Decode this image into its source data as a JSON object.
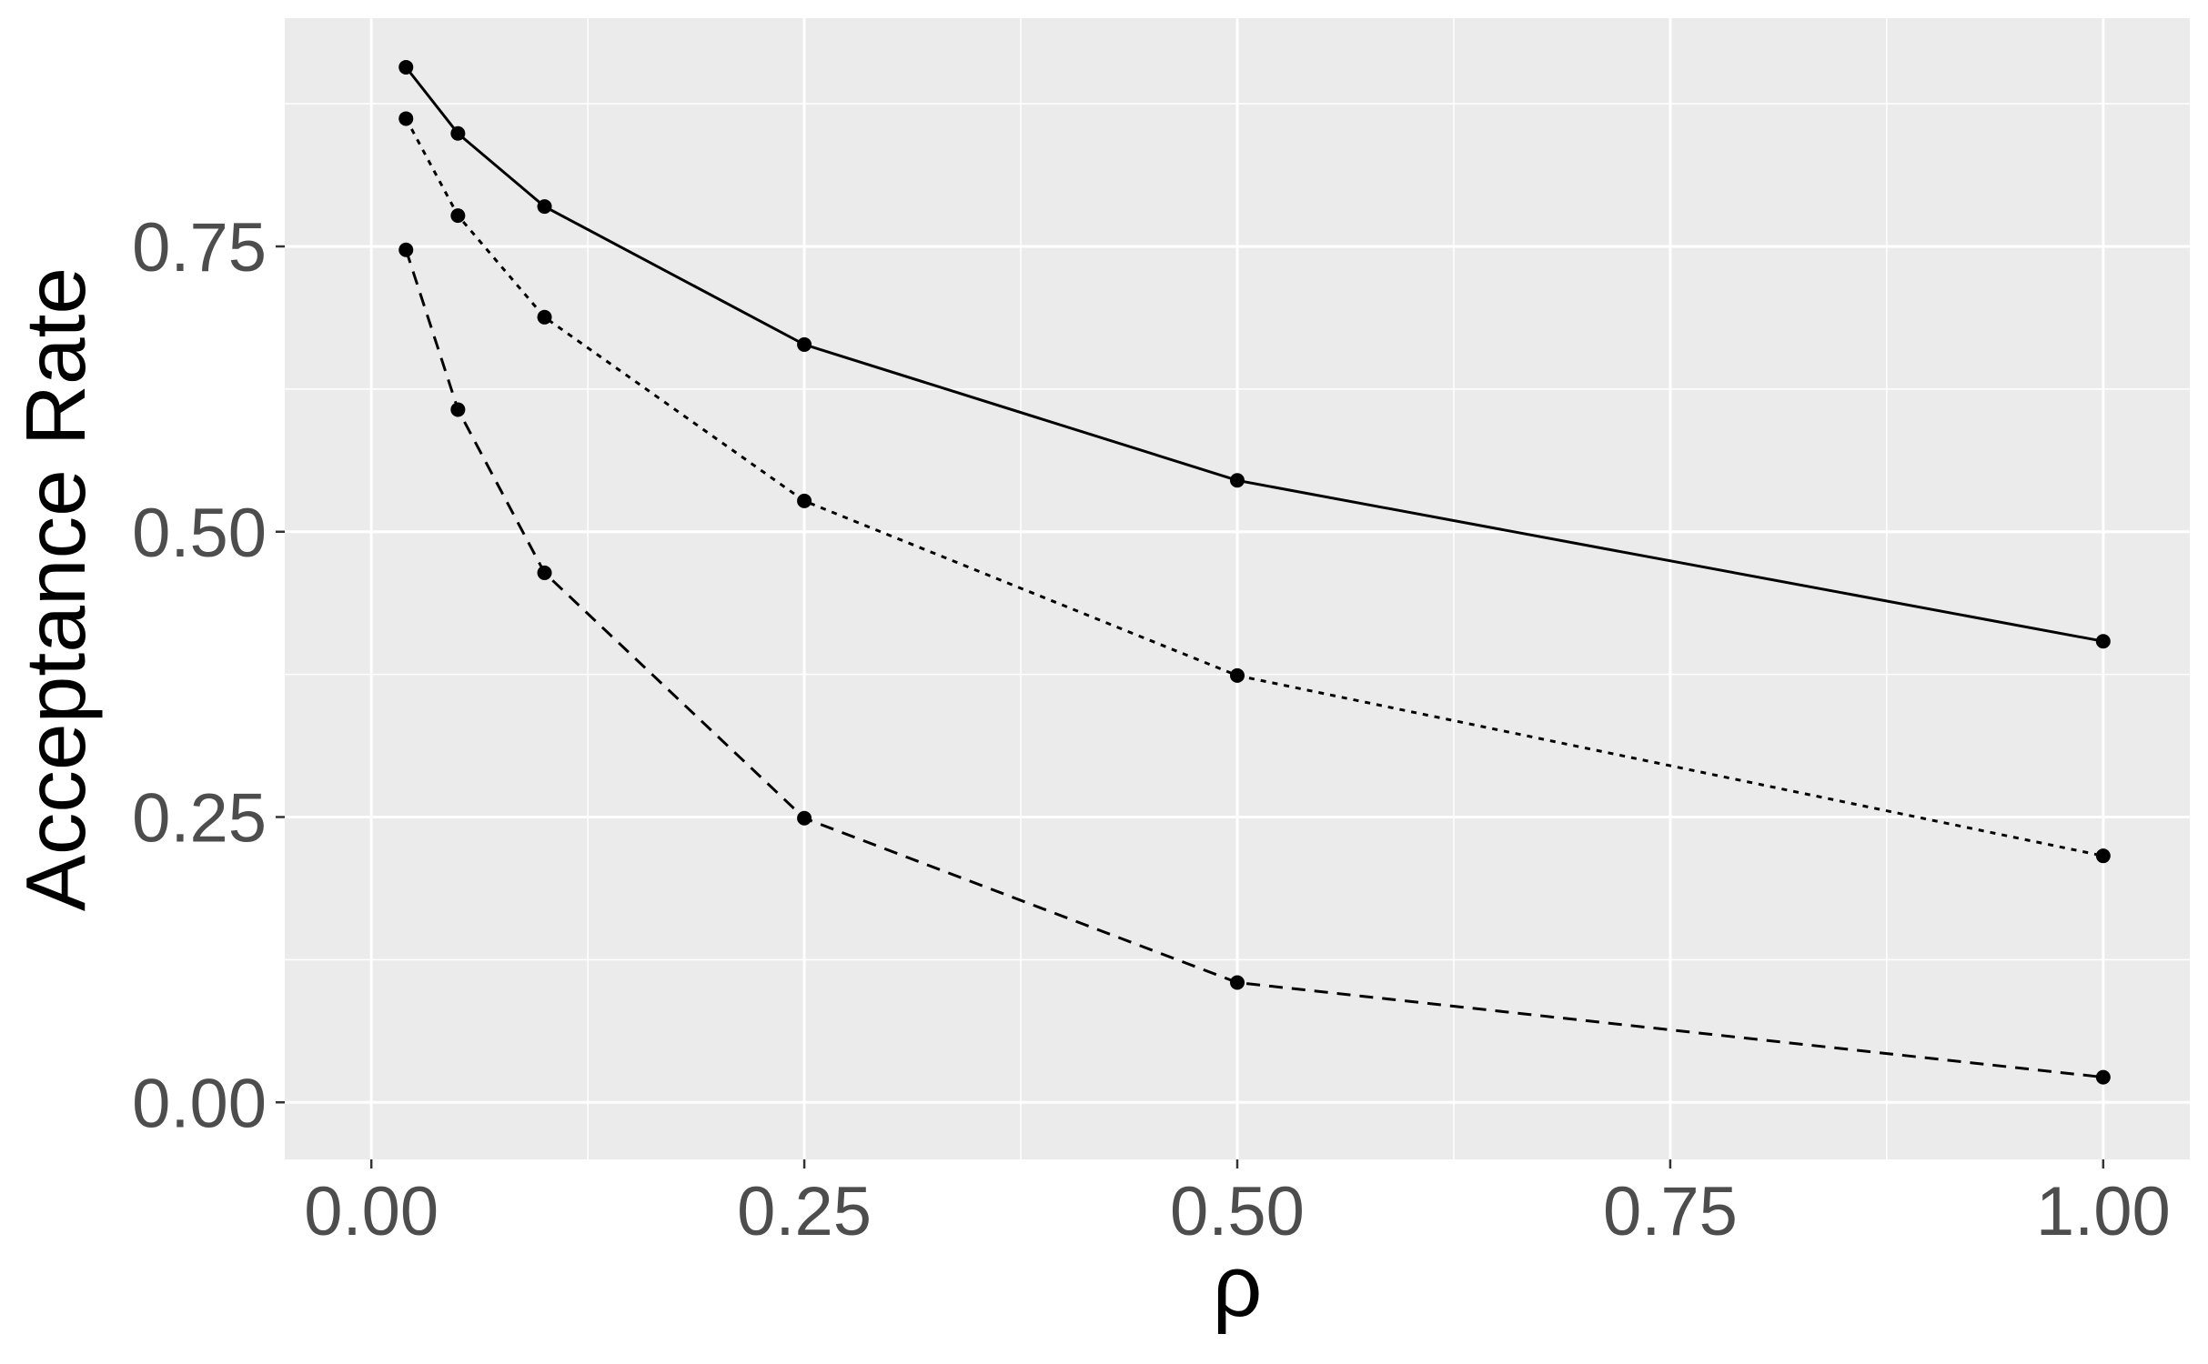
{
  "chart_data": {
    "type": "line",
    "xlabel": "ρ",
    "ylabel": "Acceptance Rate",
    "xlim": [
      -0.05,
      1.05
    ],
    "ylim": [
      -0.05,
      0.95
    ],
    "x_ticks": [
      0.0,
      0.25,
      0.5,
      0.75,
      1.0
    ],
    "x_tick_labels": [
      "0.00",
      "0.25",
      "0.50",
      "0.75",
      "1.00"
    ],
    "y_ticks": [
      0.0,
      0.25,
      0.5,
      0.75
    ],
    "y_tick_labels": [
      "0.00",
      "0.25",
      "0.50",
      "0.75"
    ],
    "grid": true,
    "legend": "none",
    "panel_background": "#ebebeb",
    "grid_color": "#ffffff",
    "line_color": "#000000",
    "x": [
      0.02,
      0.05,
      0.1,
      0.25,
      0.5,
      1.0
    ],
    "series": [
      {
        "linestyle": "solid",
        "values": [
          0.907,
          0.849,
          0.785,
          0.664,
          0.545,
          0.404
        ]
      },
      {
        "linestyle": "dotted",
        "values": [
          0.862,
          0.777,
          0.688,
          0.527,
          0.374,
          0.216
        ]
      },
      {
        "linestyle": "dashed",
        "values": [
          0.747,
          0.607,
          0.464,
          0.249,
          0.105,
          0.022
        ]
      }
    ]
  }
}
